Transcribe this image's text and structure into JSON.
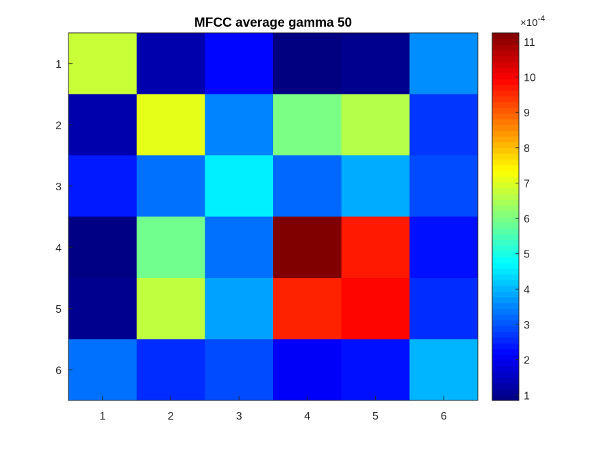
{
  "chart_data": {
    "type": "heatmap",
    "title": "MFCC average gamma 50",
    "xlabel": "",
    "ylabel": "",
    "x_ticks": [
      "1",
      "2",
      "3",
      "4",
      "5",
      "6"
    ],
    "y_ticks": [
      "1",
      "2",
      "3",
      "4",
      "5",
      "6"
    ],
    "colormap": "jet",
    "colorbar": {
      "location": "right",
      "exponent_label": "×10",
      "exponent_power": "-4",
      "clim": [
        0.85,
        11.25
      ],
      "ticks": [
        1,
        2,
        3,
        4,
        5,
        6,
        7,
        8,
        9,
        10,
        11
      ],
      "tick_labels": [
        "1",
        "2",
        "3",
        "4",
        "5",
        "6",
        "7",
        "8",
        "9",
        "10",
        "11"
      ]
    },
    "units_scale": "1e-4",
    "matrix": [
      [
        6.8,
        1.3,
        2.2,
        0.85,
        1.0,
        3.6
      ],
      [
        1.3,
        7.1,
        3.5,
        6.0,
        6.6,
        2.7
      ],
      [
        2.4,
        3.3,
        4.6,
        3.2,
        3.9,
        2.9
      ],
      [
        0.9,
        5.9,
        3.3,
        11.25,
        9.7,
        2.3
      ],
      [
        1.0,
        6.7,
        3.8,
        9.6,
        9.9,
        2.6
      ],
      [
        3.3,
        2.6,
        2.9,
        2.1,
        2.3,
        4.0
      ]
    ]
  }
}
